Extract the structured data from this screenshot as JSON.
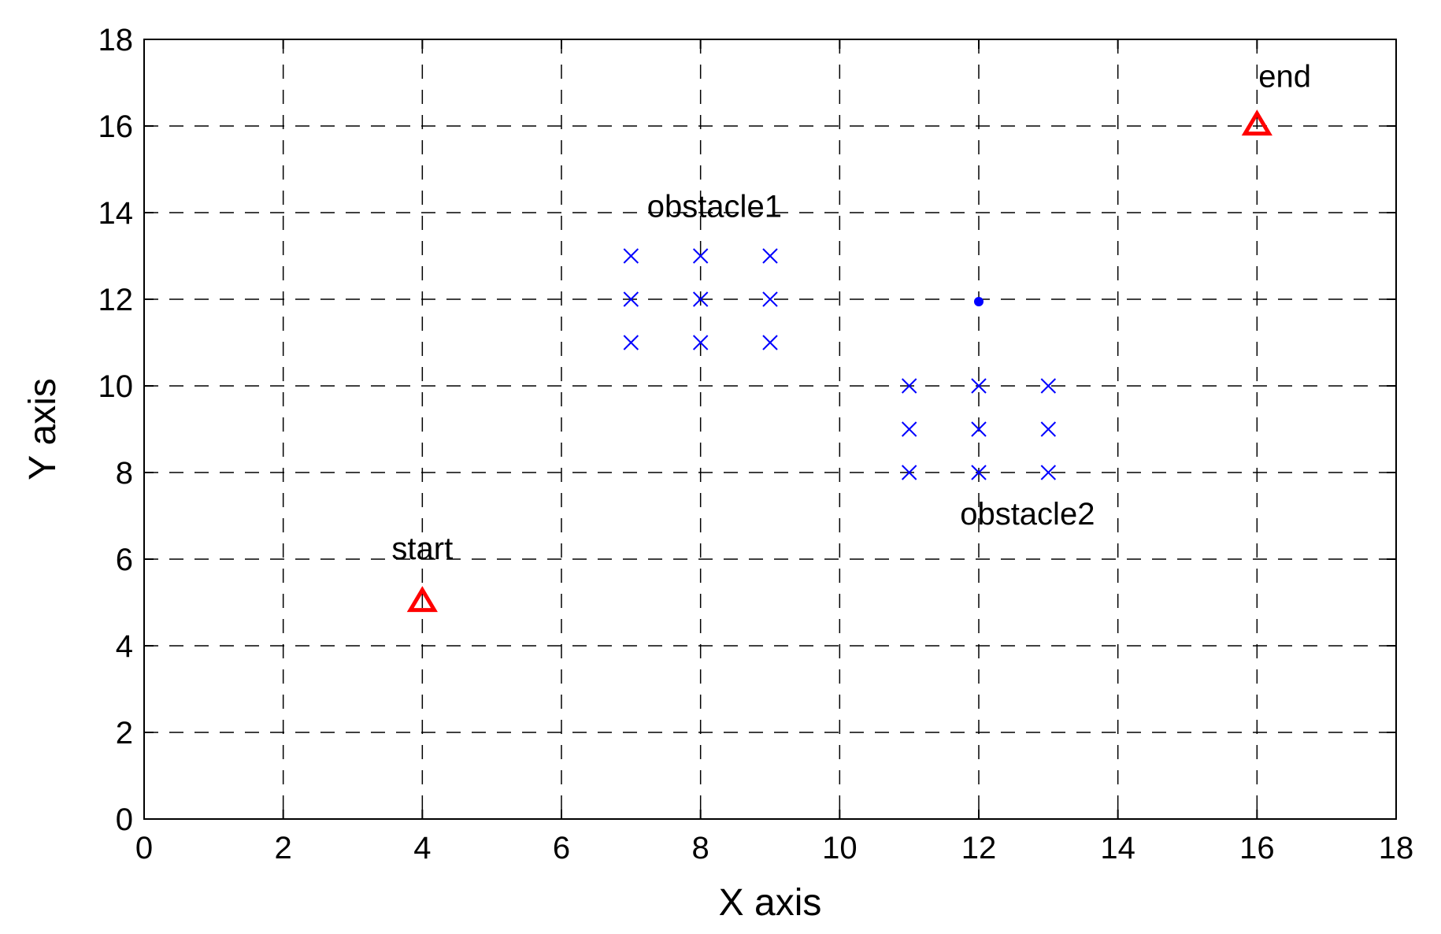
{
  "chart_data": {
    "type": "scatter",
    "title": "",
    "xlabel": "X axis",
    "ylabel": "Y axis",
    "xlim": [
      0,
      18
    ],
    "ylim": [
      0,
      18
    ],
    "xticks": [
      "0",
      "2",
      "4",
      "6",
      "8",
      "10",
      "12",
      "14",
      "16",
      "18"
    ],
    "yticks": [
      "0",
      "2",
      "4",
      "6",
      "8",
      "10",
      "12",
      "14",
      "16",
      "18"
    ],
    "grid": true,
    "grid_style": "dashed",
    "series": [
      {
        "marker": "triangle",
        "color": "#ff0000",
        "points": [
          [
            4,
            5
          ],
          [
            16,
            16
          ]
        ]
      },
      {
        "marker": "x",
        "color": "#0000ff",
        "points": [
          [
            7,
            13
          ],
          [
            8,
            13
          ],
          [
            9,
            13
          ],
          [
            7,
            12
          ],
          [
            8,
            12
          ],
          [
            9,
            12
          ],
          [
            7,
            11
          ],
          [
            8,
            11
          ],
          [
            9,
            11
          ]
        ]
      },
      {
        "marker": "x",
        "color": "#0000ff",
        "points": [
          [
            11,
            10
          ],
          [
            12,
            10
          ],
          [
            13,
            10
          ],
          [
            11,
            9
          ],
          [
            12,
            9
          ],
          [
            13,
            9
          ],
          [
            11,
            8
          ],
          [
            12,
            8
          ],
          [
            13,
            8
          ]
        ]
      },
      {
        "marker": "dot",
        "color": "#0000ff",
        "points": [
          [
            12,
            12
          ]
        ]
      }
    ],
    "annotations": [
      {
        "text": "start",
        "x": 4.0,
        "y": 6.0
      },
      {
        "text": "end",
        "x": 16.4,
        "y": 16.9
      },
      {
        "text": "obstacle1",
        "x": 8.2,
        "y": 13.9
      },
      {
        "text": "obstacle2",
        "x": 12.7,
        "y": 6.8
      }
    ]
  }
}
